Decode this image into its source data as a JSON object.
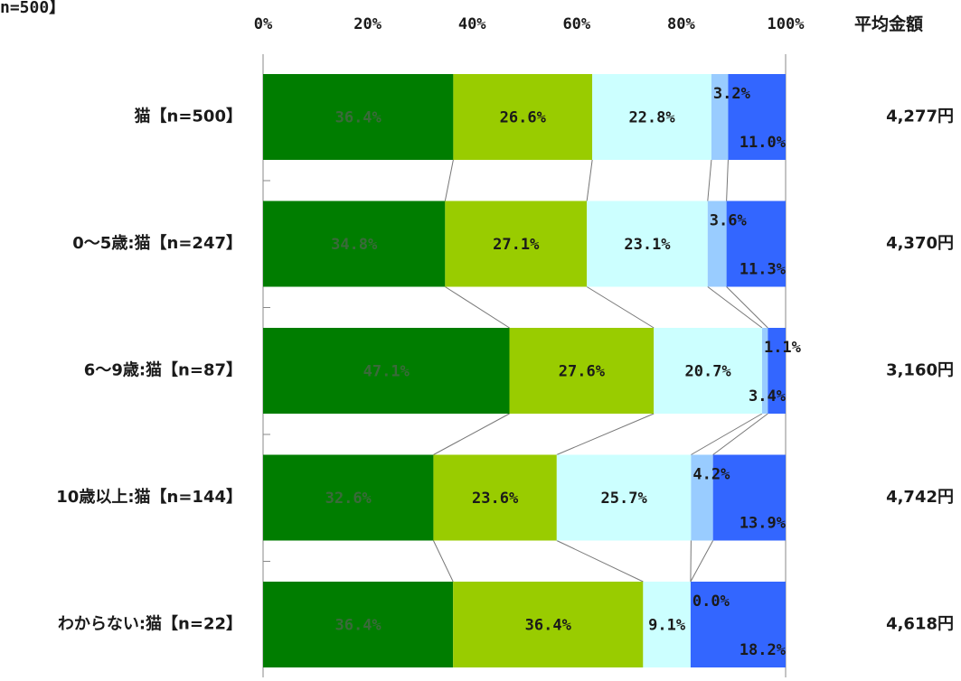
{
  "header": {
    "top_left": "n=500】",
    "avg_title": "平均金額"
  },
  "chart_data": {
    "type": "bar",
    "orientation": "horizontal",
    "stacked": "100%",
    "xlim": [
      0,
      100
    ],
    "x_ticks": [
      "0%",
      "20%",
      "40%",
      "60%",
      "80%",
      "100%"
    ],
    "categories": [
      "猫【n=500】",
      "0～5歳:猫【n=247】",
      "6～9歳:猫【n=87】",
      "10歳以上:猫【n=144】",
      "わからない:猫【n=22】"
    ],
    "series": [
      {
        "color": "#007d00",
        "label_color": "#3a6a3a",
        "values": [
          36.4,
          34.8,
          47.1,
          32.6,
          36.4
        ]
      },
      {
        "color": "#99cc00",
        "label_color": "#1a1a1a",
        "values": [
          26.6,
          27.1,
          27.6,
          23.6,
          36.4
        ]
      },
      {
        "color": "#ccffff",
        "label_color": "#1a1a1a",
        "values": [
          22.8,
          23.1,
          20.7,
          25.7,
          9.1
        ]
      },
      {
        "color": "#99ccff",
        "label_color": "#1a1a1a",
        "values": [
          3.2,
          3.6,
          1.1,
          4.2,
          0.0
        ]
      },
      {
        "color": "#3366ff",
        "label_color": "#1a1a1a",
        "values": [
          11.0,
          11.3,
          3.4,
          13.9,
          18.2
        ]
      }
    ],
    "data_labels": [
      [
        "36.4%",
        "26.6%",
        "22.8%",
        "3.2%",
        "11.0%"
      ],
      [
        "34.8%",
        "27.1%",
        "23.1%",
        "3.6%",
        "11.3%"
      ],
      [
        "47.1%",
        "27.6%",
        "20.7%",
        "1.1%",
        "3.4%"
      ],
      [
        "32.6%",
        "23.6%",
        "25.7%",
        "4.2%",
        "13.9%"
      ],
      [
        "36.4%",
        "36.4%",
        "9.1%",
        "0.0%",
        "18.2%"
      ]
    ],
    "averages": [
      "4,277円",
      "4,370円",
      "3,160円",
      "4,742円",
      "4,618円"
    ],
    "series_lines": true,
    "grid": false
  }
}
